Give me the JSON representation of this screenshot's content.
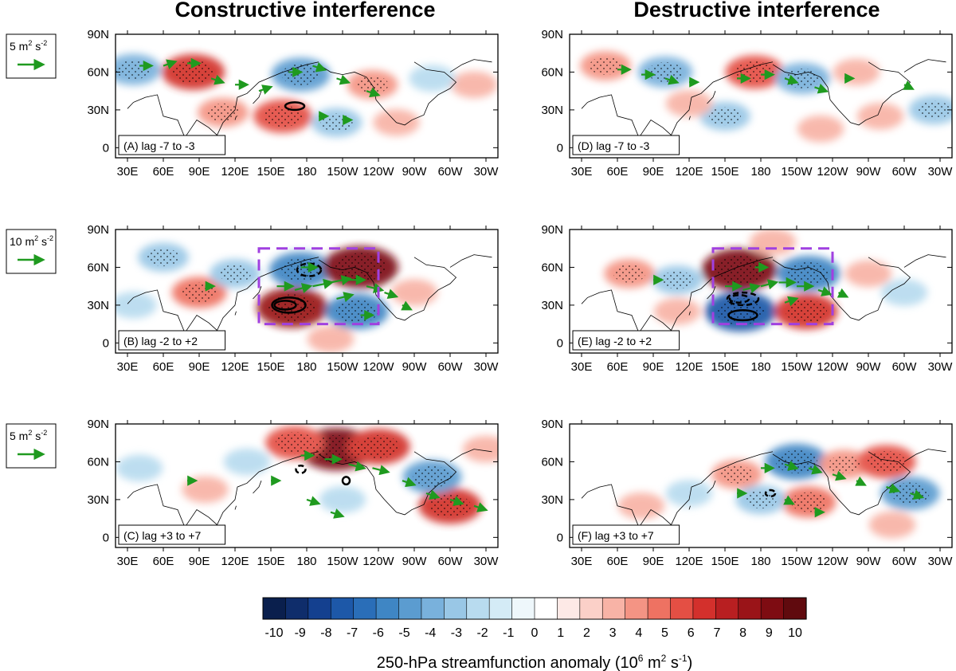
{
  "chart_data": {
    "type": "heatmap",
    "description_units": "250-hPa streamfunction anomaly composites with wave-activity flux vectors",
    "column_titles": [
      "Constructive interference",
      "Destructive interference"
    ],
    "lat_ticks": [
      "90N",
      "60N",
      "30N",
      "0"
    ],
    "lat_values": [
      90,
      60,
      30,
      0
    ],
    "lon_ticks": [
      "30E",
      "60E",
      "90E",
      "120E",
      "150E",
      "180",
      "150W",
      "120W",
      "90W",
      "60W",
      "30W"
    ],
    "lon_values": [
      30,
      60,
      90,
      120,
      150,
      180,
      210,
      240,
      270,
      300,
      330
    ],
    "lon_range": [
      20,
      340
    ],
    "lat_range": [
      -8,
      90
    ],
    "reference_vectors": [
      {
        "row": 0,
        "label_main": "5 m",
        "sup1": "2",
        "label_mid": " s",
        "sup2": "-2",
        "magnitude": 5
      },
      {
        "row": 1,
        "label_main": "10 m",
        "sup1": "2",
        "label_mid": " s",
        "sup2": "-2",
        "magnitude": 10
      },
      {
        "row": 2,
        "label_main": "5 m",
        "sup1": "2",
        "label_mid": " s",
        "sup2": "-2",
        "magnitude": 5
      }
    ],
    "panels": [
      {
        "id": "A",
        "label": "(A) lag -7 to -3",
        "col": 0,
        "row": 0,
        "anomalies": [
          {
            "lon": 85,
            "lat": 60,
            "value": 6
          },
          {
            "lon": 35,
            "lat": 62,
            "value": -4
          },
          {
            "lon": 175,
            "lat": 58,
            "value": -5
          },
          {
            "lon": 160,
            "lat": 25,
            "value": 5
          },
          {
            "lon": 110,
            "lat": 28,
            "value": 3
          },
          {
            "lon": 235,
            "lat": 50,
            "value": 3
          },
          {
            "lon": 205,
            "lat": 20,
            "value": -3
          },
          {
            "lon": 320,
            "lat": 50,
            "value": 2
          },
          {
            "lon": 255,
            "lat": 20,
            "value": 2
          },
          {
            "lon": 285,
            "lat": 55,
            "value": -2
          }
        ],
        "vectors": [
          {
            "lon": 40,
            "lat": 65,
            "u": 3,
            "v": 0
          },
          {
            "lon": 60,
            "lat": 65,
            "u": 3,
            "v": 1
          },
          {
            "lon": 80,
            "lat": 67,
            "u": 3,
            "v": 0
          },
          {
            "lon": 100,
            "lat": 55,
            "u": 3,
            "v": -1
          },
          {
            "lon": 120,
            "lat": 50,
            "u": 3,
            "v": 0
          },
          {
            "lon": 140,
            "lat": 45,
            "u": 3,
            "v": 1
          },
          {
            "lon": 165,
            "lat": 60,
            "u": 3,
            "v": 0
          },
          {
            "lon": 185,
            "lat": 65,
            "u": 3,
            "v": -1
          },
          {
            "lon": 205,
            "lat": 55,
            "u": 3,
            "v": -1
          },
          {
            "lon": 230,
            "lat": 45,
            "u": 3,
            "v": -1
          },
          {
            "lon": 210,
            "lat": 22,
            "u": 2,
            "v": 0
          },
          {
            "lon": 190,
            "lat": 25,
            "u": 2,
            "v": 0
          }
        ],
        "contours": [
          {
            "lon": 170,
            "lat": 33,
            "rx": 8,
            "ry": 3,
            "style": "solid"
          }
        ],
        "box": null
      },
      {
        "id": "B",
        "label": "(B) lag -2 to +2",
        "col": 0,
        "row": 1,
        "anomalies": [
          {
            "lon": 175,
            "lat": 58,
            "value": -6
          },
          {
            "lon": 225,
            "lat": 60,
            "value": 9
          },
          {
            "lon": 168,
            "lat": 28,
            "value": 8
          },
          {
            "lon": 222,
            "lat": 25,
            "value": -6
          },
          {
            "lon": 90,
            "lat": 40,
            "value": 4
          },
          {
            "lon": 60,
            "lat": 68,
            "value": -3
          },
          {
            "lon": 120,
            "lat": 55,
            "value": -3
          },
          {
            "lon": 270,
            "lat": 40,
            "value": 2
          },
          {
            "lon": 35,
            "lat": 30,
            "value": -2
          },
          {
            "lon": 200,
            "lat": 3,
            "value": 2
          }
        ],
        "vectors": [
          {
            "lon": 155,
            "lat": 45,
            "u": 4,
            "v": 0
          },
          {
            "lon": 170,
            "lat": 42,
            "u": 4,
            "v": 1
          },
          {
            "lon": 185,
            "lat": 45,
            "u": 5,
            "v": 1
          },
          {
            "lon": 200,
            "lat": 48,
            "u": 5,
            "v": 1
          },
          {
            "lon": 215,
            "lat": 50,
            "u": 4,
            "v": 0
          },
          {
            "lon": 230,
            "lat": 45,
            "u": 4,
            "v": -1
          },
          {
            "lon": 175,
            "lat": 60,
            "u": 4,
            "v": 0
          },
          {
            "lon": 205,
            "lat": 35,
            "u": 4,
            "v": 1
          },
          {
            "lon": 245,
            "lat": 40,
            "u": 3,
            "v": -1
          },
          {
            "lon": 95,
            "lat": 45,
            "u": 2,
            "v": 0
          },
          {
            "lon": 225,
            "lat": 22,
            "u": 3,
            "v": 0
          },
          {
            "lon": 260,
            "lat": 30,
            "u": 2,
            "v": -1
          }
        ],
        "contours": [
          {
            "lon": 165,
            "lat": 30,
            "rx": 14,
            "ry": 6,
            "style": "solid"
          },
          {
            "lon": 162,
            "lat": 30,
            "rx": 9,
            "ry": 3.5,
            "style": "solid"
          },
          {
            "lon": 182,
            "lat": 58,
            "rx": 10,
            "ry": 5,
            "style": "dashed"
          }
        ],
        "box": {
          "lon1": 140,
          "lon2": 240,
          "lat1": 15,
          "lat2": 75
        }
      },
      {
        "id": "C",
        "label": "(C) lag +3 to +7",
        "col": 0,
        "row": 2,
        "anomalies": [
          {
            "lon": 205,
            "lat": 70,
            "value": 9
          },
          {
            "lon": 170,
            "lat": 75,
            "value": 5
          },
          {
            "lon": 240,
            "lat": 72,
            "value": 6
          },
          {
            "lon": 300,
            "lat": 25,
            "value": 6
          },
          {
            "lon": 285,
            "lat": 48,
            "value": -5
          },
          {
            "lon": 210,
            "lat": 30,
            "value": -2
          },
          {
            "lon": 95,
            "lat": 38,
            "value": 2
          },
          {
            "lon": 130,
            "lat": 60,
            "value": -2
          },
          {
            "lon": 40,
            "lat": 55,
            "value": -2
          },
          {
            "lon": 330,
            "lat": 70,
            "value": 2
          }
        ],
        "vectors": [
          {
            "lon": 175,
            "lat": 65,
            "u": 3,
            "v": 0
          },
          {
            "lon": 195,
            "lat": 62,
            "u": 4,
            "v": 0
          },
          {
            "lon": 215,
            "lat": 58,
            "u": 4,
            "v": -1
          },
          {
            "lon": 235,
            "lat": 55,
            "u": 4,
            "v": -1
          },
          {
            "lon": 260,
            "lat": 45,
            "u": 3,
            "v": -1
          },
          {
            "lon": 280,
            "lat": 35,
            "u": 3,
            "v": -1
          },
          {
            "lon": 300,
            "lat": 30,
            "u": 3,
            "v": -1
          },
          {
            "lon": 320,
            "lat": 25,
            "u": 3,
            "v": -1
          },
          {
            "lon": 180,
            "lat": 30,
            "u": 3,
            "v": -1
          },
          {
            "lon": 200,
            "lat": 20,
            "u": 3,
            "v": -1
          },
          {
            "lon": 150,
            "lat": 45,
            "u": 2,
            "v": 0
          },
          {
            "lon": 80,
            "lat": 45,
            "u": 2,
            "v": 0
          }
        ],
        "contours": [
          {
            "lon": 213,
            "lat": 45,
            "rx": 3,
            "ry": 3,
            "style": "solid"
          },
          {
            "lon": 175,
            "lat": 54,
            "rx": 4,
            "ry": 3,
            "style": "dashed"
          }
        ],
        "box": null
      },
      {
        "id": "D",
        "label": "(D) lag -7 to -3",
        "col": 1,
        "row": 0,
        "anomalies": [
          {
            "lon": 50,
            "lat": 65,
            "value": 3
          },
          {
            "lon": 100,
            "lat": 60,
            "value": -4
          },
          {
            "lon": 175,
            "lat": 60,
            "value": 5
          },
          {
            "lon": 215,
            "lat": 55,
            "value": -4
          },
          {
            "lon": 150,
            "lat": 25,
            "value": -3
          },
          {
            "lon": 120,
            "lat": 35,
            "value": 2
          },
          {
            "lon": 260,
            "lat": 60,
            "value": 2
          },
          {
            "lon": 280,
            "lat": 25,
            "value": 2
          },
          {
            "lon": 325,
            "lat": 30,
            "value": -3
          },
          {
            "lon": 230,
            "lat": 15,
            "value": 2
          }
        ],
        "vectors": [
          {
            "lon": 60,
            "lat": 62,
            "u": 3,
            "v": 0
          },
          {
            "lon": 80,
            "lat": 58,
            "u": 3,
            "v": 0
          },
          {
            "lon": 100,
            "lat": 55,
            "u": 3,
            "v": -1
          },
          {
            "lon": 120,
            "lat": 52,
            "u": 2,
            "v": 0
          },
          {
            "lon": 160,
            "lat": 55,
            "u": 3,
            "v": 0
          },
          {
            "lon": 180,
            "lat": 58,
            "u": 3,
            "v": 0
          },
          {
            "lon": 200,
            "lat": 55,
            "u": 3,
            "v": -1
          },
          {
            "lon": 225,
            "lat": 48,
            "u": 3,
            "v": -1
          },
          {
            "lon": 250,
            "lat": 55,
            "u": 2,
            "v": 0
          },
          {
            "lon": 300,
            "lat": 50,
            "u": 2,
            "v": -1
          }
        ],
        "contours": [],
        "box": null
      },
      {
        "id": "E",
        "label": "(E) lag -2 to +2",
        "col": 1,
        "row": 1,
        "anomalies": [
          {
            "lon": 162,
            "lat": 58,
            "value": 9
          },
          {
            "lon": 220,
            "lat": 55,
            "value": -6
          },
          {
            "lon": 163,
            "lat": 25,
            "value": -8
          },
          {
            "lon": 218,
            "lat": 25,
            "value": 6
          },
          {
            "lon": 110,
            "lat": 50,
            "value": -3
          },
          {
            "lon": 70,
            "lat": 55,
            "value": 3
          },
          {
            "lon": 270,
            "lat": 55,
            "value": 2
          },
          {
            "lon": 300,
            "lat": 40,
            "value": -2
          },
          {
            "lon": 110,
            "lat": 25,
            "value": 2
          },
          {
            "lon": 190,
            "lat": 80,
            "value": 2
          }
        ],
        "vectors": [
          {
            "lon": 150,
            "lat": 45,
            "u": 4,
            "v": 0
          },
          {
            "lon": 165,
            "lat": 42,
            "u": 4,
            "v": 1
          },
          {
            "lon": 180,
            "lat": 45,
            "u": 4,
            "v": 1
          },
          {
            "lon": 195,
            "lat": 48,
            "u": 4,
            "v": 0
          },
          {
            "lon": 210,
            "lat": 45,
            "u": 4,
            "v": 0
          },
          {
            "lon": 228,
            "lat": 42,
            "u": 3,
            "v": -1
          },
          {
            "lon": 175,
            "lat": 60,
            "u": 3,
            "v": 0
          },
          {
            "lon": 200,
            "lat": 32,
            "u": 3,
            "v": 1
          },
          {
            "lon": 245,
            "lat": 40,
            "u": 2,
            "v": -1
          },
          {
            "lon": 90,
            "lat": 50,
            "u": 2,
            "v": 0
          }
        ],
        "contours": [
          {
            "lon": 165,
            "lat": 35,
            "rx": 13,
            "ry": 5,
            "style": "dashed"
          },
          {
            "lon": 162,
            "lat": 35,
            "rx": 8,
            "ry": 3,
            "style": "dashed"
          },
          {
            "lon": 165,
            "lat": 22,
            "rx": 12,
            "ry": 4,
            "style": "solid"
          }
        ],
        "box": {
          "lon1": 140,
          "lon2": 240,
          "lat1": 15,
          "lat2": 75
        }
      },
      {
        "id": "F",
        "label": "(F) lag +3 to +7",
        "col": 1,
        "row": 2,
        "anomalies": [
          {
            "lon": 210,
            "lat": 60,
            "value": -6
          },
          {
            "lon": 160,
            "lat": 50,
            "value": 3
          },
          {
            "lon": 250,
            "lat": 58,
            "value": 3
          },
          {
            "lon": 285,
            "lat": 60,
            "value": 5
          },
          {
            "lon": 305,
            "lat": 35,
            "value": -5
          },
          {
            "lon": 220,
            "lat": 28,
            "value": 4
          },
          {
            "lon": 180,
            "lat": 30,
            "value": -3
          },
          {
            "lon": 120,
            "lat": 35,
            "value": -2
          },
          {
            "lon": 80,
            "lat": 25,
            "value": 2
          },
          {
            "lon": 290,
            "lat": 10,
            "value": 2
          }
        ],
        "vectors": [
          {
            "lon": 180,
            "lat": 55,
            "u": 3,
            "v": 0
          },
          {
            "lon": 200,
            "lat": 58,
            "u": 3,
            "v": -1
          },
          {
            "lon": 220,
            "lat": 55,
            "u": 3,
            "v": -1
          },
          {
            "lon": 240,
            "lat": 50,
            "u": 3,
            "v": -1
          },
          {
            "lon": 260,
            "lat": 45,
            "u": 2,
            "v": -1
          },
          {
            "lon": 285,
            "lat": 40,
            "u": 3,
            "v": -1
          },
          {
            "lon": 305,
            "lat": 35,
            "u": 3,
            "v": -1
          },
          {
            "lon": 200,
            "lat": 30,
            "u": 2,
            "v": -1
          },
          {
            "lon": 160,
            "lat": 35,
            "u": 2,
            "v": 0
          },
          {
            "lon": 225,
            "lat": 20,
            "u": 2,
            "v": 0
          }
        ],
        "contours": [
          {
            "lon": 188,
            "lat": 35,
            "rx": 4,
            "ry": 2.5,
            "style": "dashed"
          }
        ],
        "box": null
      }
    ],
    "colorbar": {
      "levels": [
        "-10",
        "-9",
        "-8",
        "-7",
        "-6",
        "-5",
        "-4",
        "-3",
        "-2",
        "-1",
        "0",
        "1",
        "2",
        "3",
        "4",
        "5",
        "6",
        "7",
        "8",
        "9",
        "10"
      ],
      "colors": [
        "#0a1f4d",
        "#0f2d6b",
        "#14408f",
        "#1d58a8",
        "#2a6eb8",
        "#3f86c4",
        "#5b9cd0",
        "#79b1dc",
        "#99c7e6",
        "#b8dbef",
        "#d4ebf6",
        "#eef7fb",
        "#ffffff",
        "#fde9e6",
        "#fbd0c8",
        "#f8b3a6",
        "#f49484",
        "#ee7262",
        "#e44f44",
        "#d3302c",
        "#b81f21",
        "#9a1418",
        "#7e0c12",
        "#600a0e"
      ],
      "title_prefix": "250-hPa streamfunction anomaly (10",
      "title_sup1": "6",
      "title_mid": " m",
      "title_sup2": "2",
      "title_mid2": " s",
      "title_sup3": "-1",
      "title_suffix": ")"
    },
    "colors": {
      "vector": "#1f9a1f",
      "box": "#a040e0",
      "contour": "#000000",
      "stipple": "#000000"
    }
  }
}
